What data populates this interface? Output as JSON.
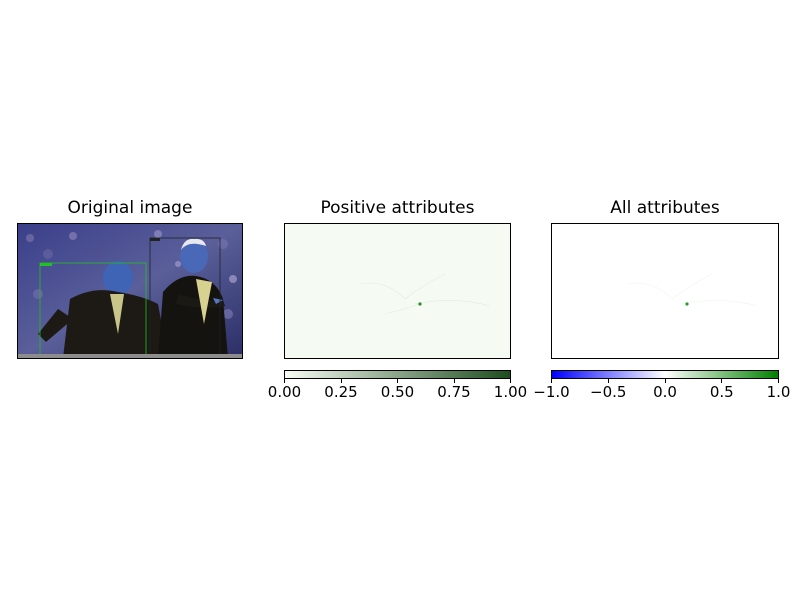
{
  "panels": [
    {
      "title": "Original image"
    },
    {
      "title": "Positive attributes"
    },
    {
      "title": "All attributes"
    }
  ],
  "colorbars": {
    "positive": {
      "ticks": [
        "0.00",
        "0.25",
        "0.50",
        "0.75",
        "1.00"
      ],
      "range": [
        0,
        1
      ],
      "colors": [
        "#f7fcf5",
        "#1e4d1e"
      ]
    },
    "all": {
      "ticks": [
        "−1.0",
        "−0.5",
        "0.0",
        "0.5",
        "1.0"
      ],
      "range": [
        -1,
        1
      ],
      "colors": [
        "#0000ff",
        "#ffffff",
        "#008000"
      ]
    }
  },
  "detection_box_color": "#22c022"
}
